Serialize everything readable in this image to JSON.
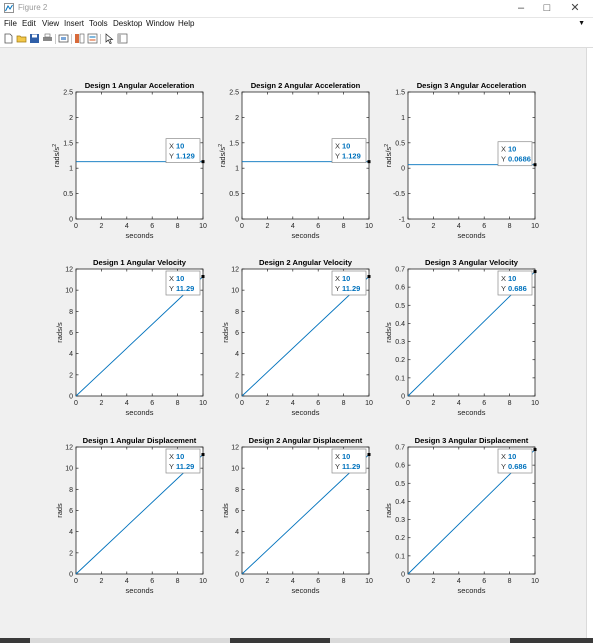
{
  "window": {
    "title": "Figure 2"
  },
  "menu": [
    "File",
    "Edit",
    "View",
    "Insert",
    "Tools",
    "Desktop",
    "Window",
    "Help"
  ],
  "toolbar": {
    "icons": [
      "new-figure-icon",
      "open-file-icon",
      "save-icon",
      "print-icon",
      "link-plot-icon",
      "insert-colorbar-icon",
      "edit-plot-icon",
      "property-inspector-icon"
    ]
  },
  "colors": {
    "line": "#0072bd",
    "tip_value": "#0072bd",
    "axes_bg": "#ffffff",
    "figure_bg": "#f0f0f0"
  },
  "chart_data": [
    {
      "type": "line",
      "title": "Design 1 Angular Acceleration",
      "xlabel": "seconds",
      "ylabel": "rads/s²",
      "ylabel_base": "rads/s",
      "ylabel_sup": "2",
      "xlim": [
        0,
        10
      ],
      "ylim": [
        0,
        2.5
      ],
      "xticks": [
        0,
        2,
        4,
        6,
        8,
        10
      ],
      "yticks": [
        0,
        0.5,
        1,
        1.5,
        2,
        2.5
      ],
      "ytick_labels": [
        "0",
        "0.5",
        "1",
        "1.5",
        "2",
        "2.5"
      ],
      "series": [
        {
          "name": "acceleration",
          "x": [
            0,
            10
          ],
          "y": [
            1.129,
            1.129
          ]
        }
      ],
      "datatip": {
        "x": 10,
        "y": 1.129,
        "x_text": "10",
        "y_text": "1.129"
      }
    },
    {
      "type": "line",
      "title": "Design 2 Angular Acceleration",
      "xlabel": "seconds",
      "ylabel": "rads/s²",
      "ylabel_base": "rads/s",
      "ylabel_sup": "2",
      "xlim": [
        0,
        10
      ],
      "ylim": [
        0,
        2.5
      ],
      "xticks": [
        0,
        2,
        4,
        6,
        8,
        10
      ],
      "yticks": [
        0,
        0.5,
        1,
        1.5,
        2,
        2.5
      ],
      "ytick_labels": [
        "0",
        "0.5",
        "1",
        "1.5",
        "2",
        "2.5"
      ],
      "series": [
        {
          "name": "acceleration",
          "x": [
            0,
            10
          ],
          "y": [
            1.129,
            1.129
          ]
        }
      ],
      "datatip": {
        "x": 10,
        "y": 1.129,
        "x_text": "10",
        "y_text": "1.129"
      }
    },
    {
      "type": "line",
      "title": "Design 3 Angular Acceleration",
      "xlabel": "seconds",
      "ylabel": "rads/s²",
      "ylabel_base": "rads/s",
      "ylabel_sup": "2",
      "xlim": [
        0,
        10
      ],
      "ylim": [
        -1,
        1.5
      ],
      "xticks": [
        0,
        2,
        4,
        6,
        8,
        10
      ],
      "yticks": [
        -1,
        -0.5,
        0,
        0.5,
        1,
        1.5
      ],
      "ytick_labels": [
        "-1",
        "-0.5",
        "0",
        "0.5",
        "1",
        "1.5"
      ],
      "series": [
        {
          "name": "acceleration",
          "x": [
            0,
            10
          ],
          "y": [
            0.0686,
            0.0686
          ]
        }
      ],
      "datatip": {
        "x": 10,
        "y": 0.0686,
        "x_text": "10",
        "y_text": "0.0686"
      }
    },
    {
      "type": "line",
      "title": "Design 1 Angular Velocity",
      "xlabel": "seconds",
      "ylabel": "rads/s",
      "xlim": [
        0,
        10
      ],
      "ylim": [
        0,
        12
      ],
      "xticks": [
        0,
        2,
        4,
        6,
        8,
        10
      ],
      "yticks": [
        0,
        2,
        4,
        6,
        8,
        10,
        12
      ],
      "ytick_labels": [
        "0",
        "2",
        "4",
        "6",
        "8",
        "10",
        "12"
      ],
      "series": [
        {
          "name": "velocity",
          "x": [
            0,
            10
          ],
          "y": [
            0,
            11.29
          ]
        }
      ],
      "datatip": {
        "x": 10,
        "y": 11.29,
        "x_text": "10",
        "y_text": "11.29"
      }
    },
    {
      "type": "line",
      "title": "Design 2 Angular Velocity",
      "xlabel": "seconds",
      "ylabel": "rads/s",
      "xlim": [
        0,
        10
      ],
      "ylim": [
        0,
        12
      ],
      "xticks": [
        0,
        2,
        4,
        6,
        8,
        10
      ],
      "yticks": [
        0,
        2,
        4,
        6,
        8,
        10,
        12
      ],
      "ytick_labels": [
        "0",
        "2",
        "4",
        "6",
        "8",
        "10",
        "12"
      ],
      "series": [
        {
          "name": "velocity",
          "x": [
            0,
            10
          ],
          "y": [
            0,
            11.29
          ]
        }
      ],
      "datatip": {
        "x": 10,
        "y": 11.29,
        "x_text": "10",
        "y_text": "11.29"
      }
    },
    {
      "type": "line",
      "title": "Design 3 Angular Velocity",
      "xlabel": "seconds",
      "ylabel": "rads/s",
      "xlim": [
        0,
        10
      ],
      "ylim": [
        0,
        0.7
      ],
      "xticks": [
        0,
        2,
        4,
        6,
        8,
        10
      ],
      "yticks": [
        0,
        0.1,
        0.2,
        0.3,
        0.4,
        0.5,
        0.6,
        0.7
      ],
      "ytick_labels": [
        "0",
        "0.1",
        "0.2",
        "0.3",
        "0.4",
        "0.5",
        "0.6",
        "0.7"
      ],
      "series": [
        {
          "name": "velocity",
          "x": [
            0,
            10
          ],
          "y": [
            0,
            0.686
          ]
        }
      ],
      "datatip": {
        "x": 10,
        "y": 0.686,
        "x_text": "10",
        "y_text": "0.686"
      }
    },
    {
      "type": "line",
      "title": "Design 1 Angular Displacement",
      "xlabel": "seconds",
      "ylabel": "rads",
      "xlim": [
        0,
        10
      ],
      "ylim": [
        0,
        12
      ],
      "xticks": [
        0,
        2,
        4,
        6,
        8,
        10
      ],
      "yticks": [
        0,
        2,
        4,
        6,
        8,
        10,
        12
      ],
      "ytick_labels": [
        "0",
        "2",
        "4",
        "6",
        "8",
        "10",
        "12"
      ],
      "series": [
        {
          "name": "displacement",
          "x": [
            0,
            10
          ],
          "y": [
            0,
            11.29
          ]
        }
      ],
      "datatip": {
        "x": 10,
        "y": 11.29,
        "x_text": "10",
        "y_text": "11.29"
      }
    },
    {
      "type": "line",
      "title": "Design 2 Angular Displacement",
      "xlabel": "seconds",
      "ylabel": "rads",
      "xlim": [
        0,
        10
      ],
      "ylim": [
        0,
        12
      ],
      "xticks": [
        0,
        2,
        4,
        6,
        8,
        10
      ],
      "yticks": [
        0,
        2,
        4,
        6,
        8,
        10,
        12
      ],
      "ytick_labels": [
        "0",
        "2",
        "4",
        "6",
        "8",
        "10",
        "12"
      ],
      "series": [
        {
          "name": "displacement",
          "x": [
            0,
            10
          ],
          "y": [
            0,
            11.29
          ]
        }
      ],
      "datatip": {
        "x": 10,
        "y": 11.29,
        "x_text": "10",
        "y_text": "11.29"
      }
    },
    {
      "type": "line",
      "title": "Design 3 Angular Displacement",
      "xlabel": "seconds",
      "ylabel": "rads",
      "xlim": [
        0,
        10
      ],
      "ylim": [
        0,
        0.7
      ],
      "xticks": [
        0,
        2,
        4,
        6,
        8,
        10
      ],
      "yticks": [
        0,
        0.1,
        0.2,
        0.3,
        0.4,
        0.5,
        0.6,
        0.7
      ],
      "ytick_labels": [
        "0",
        "0.1",
        "0.2",
        "0.3",
        "0.4",
        "0.5",
        "0.6",
        "0.7"
      ],
      "series": [
        {
          "name": "displacement",
          "x": [
            0,
            10
          ],
          "y": [
            0,
            0.686
          ]
        }
      ],
      "datatip": {
        "x": 10,
        "y": 0.686,
        "x_text": "10",
        "y_text": "0.686"
      }
    }
  ]
}
